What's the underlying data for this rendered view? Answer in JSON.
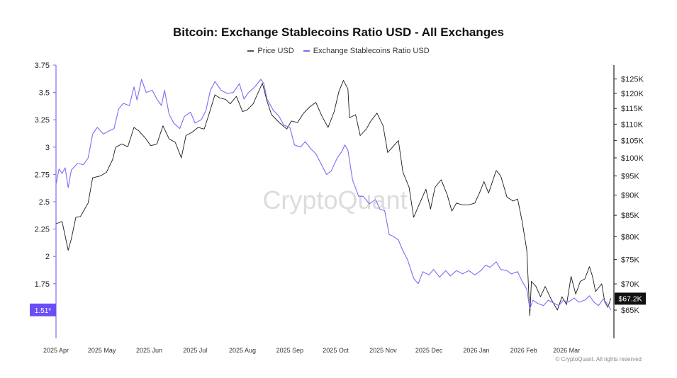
{
  "chart_data": {
    "type": "line",
    "title": "Bitcoin: Exchange Stablecoins Ratio USD - All Exchanges",
    "watermark": "CryptoQuant",
    "copyright": "© CryptoQuant. All rights reserved",
    "legend_position": "top-center",
    "grid": false,
    "x_ticks": [
      "2025 Apr",
      "2025 May",
      "2025 Jun",
      "2025 Jul",
      "2025 Aug",
      "2025 Sep",
      "2025 Oct",
      "2025 Nov",
      "2025 Dec",
      "2026 Jan",
      "2026 Feb",
      "2026 Mar"
    ],
    "x_range": [
      "2025-04-01",
      "2026-04-01"
    ],
    "left_axis": {
      "ticks": [
        "3.75",
        "3.5",
        "3.25",
        "3",
        "2.75",
        "2.5",
        "2.25",
        "2",
        "1.75"
      ],
      "range": [
        1.25,
        3.75
      ],
      "current_label": "1.51*",
      "current_value": 1.51
    },
    "right_axis": {
      "ticks": [
        "$125K",
        "$120K",
        "$115K",
        "$110K",
        "$105K",
        "$100K",
        "$95K",
        "$90K",
        "$85K",
        "$80K",
        "$75K",
        "$70K",
        "$65K"
      ],
      "scale": "log",
      "range": [
        60000,
        130000
      ],
      "current_label": "$67.2K",
      "current_value": 67200
    },
    "series": [
      {
        "name": "Price USD",
        "axis": "right",
        "color": "#1a1a1a",
        "points": [
          [
            "2025-04-01",
            83000
          ],
          [
            "2025-04-05",
            83500
          ],
          [
            "2025-04-09",
            77000
          ],
          [
            "2025-04-11",
            79500
          ],
          [
            "2025-04-14",
            84500
          ],
          [
            "2025-04-17",
            84700
          ],
          [
            "2025-04-22",
            88000
          ],
          [
            "2025-04-25",
            94500
          ],
          [
            "2025-04-30",
            95000
          ],
          [
            "2025-05-04",
            96000
          ],
          [
            "2025-05-08",
            99500
          ],
          [
            "2025-05-10",
            103000
          ],
          [
            "2025-05-14",
            104000
          ],
          [
            "2025-05-18",
            103200
          ],
          [
            "2025-05-22",
            109000
          ],
          [
            "2025-05-25",
            108000
          ],
          [
            "2025-05-29",
            106000
          ],
          [
            "2025-06-02",
            103500
          ],
          [
            "2025-06-06",
            104000
          ],
          [
            "2025-06-10",
            109500
          ],
          [
            "2025-06-14",
            105500
          ],
          [
            "2025-06-18",
            104500
          ],
          [
            "2025-06-22",
            100000
          ],
          [
            "2025-06-25",
            106500
          ],
          [
            "2025-06-29",
            107500
          ],
          [
            "2025-07-03",
            109000
          ],
          [
            "2025-07-07",
            108500
          ],
          [
            "2025-07-10",
            113000
          ],
          [
            "2025-07-14",
            119500
          ],
          [
            "2025-07-17",
            118500
          ],
          [
            "2025-07-21",
            118000
          ],
          [
            "2025-07-24",
            116500
          ],
          [
            "2025-07-28",
            119000
          ],
          [
            "2025-08-01",
            114000
          ],
          [
            "2025-08-04",
            114500
          ],
          [
            "2025-08-08",
            116500
          ],
          [
            "2025-08-11",
            120000
          ],
          [
            "2025-08-14",
            123500
          ],
          [
            "2025-08-17",
            117500
          ],
          [
            "2025-08-20",
            113000
          ],
          [
            "2025-08-25",
            110500
          ],
          [
            "2025-08-30",
            108500
          ],
          [
            "2025-09-02",
            111000
          ],
          [
            "2025-09-06",
            110500
          ],
          [
            "2025-09-10",
            113500
          ],
          [
            "2025-09-14",
            115500
          ],
          [
            "2025-09-18",
            117000
          ],
          [
            "2025-09-22",
            112500
          ],
          [
            "2025-09-26",
            109000
          ],
          [
            "2025-09-30",
            114000
          ],
          [
            "2025-10-03",
            120500
          ],
          [
            "2025-10-06",
            124500
          ],
          [
            "2025-10-09",
            121500
          ],
          [
            "2025-10-10",
            112000
          ],
          [
            "2025-10-14",
            113000
          ],
          [
            "2025-10-17",
            106500
          ],
          [
            "2025-10-21",
            108500
          ],
          [
            "2025-10-24",
            111000
          ],
          [
            "2025-10-28",
            113500
          ],
          [
            "2025-11-01",
            109500
          ],
          [
            "2025-11-04",
            101500
          ],
          [
            "2025-11-07",
            103000
          ],
          [
            "2025-11-11",
            105000
          ],
          [
            "2025-11-14",
            96000
          ],
          [
            "2025-11-18",
            92000
          ],
          [
            "2025-11-21",
            84500
          ],
          [
            "2025-11-25",
            88000
          ],
          [
            "2025-11-29",
            91500
          ],
          [
            "2025-12-02",
            86500
          ],
          [
            "2025-12-05",
            92000
          ],
          [
            "2025-12-09",
            94000
          ],
          [
            "2025-12-13",
            90000
          ],
          [
            "2025-12-16",
            86000
          ],
          [
            "2025-12-19",
            88000
          ],
          [
            "2025-12-23",
            87500
          ],
          [
            "2025-12-27",
            87500
          ],
          [
            "2025-12-31",
            88000
          ],
          [
            "2026-01-03",
            90500
          ],
          [
            "2026-01-06",
            93500
          ],
          [
            "2026-01-09",
            90500
          ],
          [
            "2026-01-14",
            96500
          ],
          [
            "2026-01-17",
            95000
          ],
          [
            "2026-01-21",
            89500
          ],
          [
            "2026-01-25",
            88500
          ],
          [
            "2026-01-28",
            89000
          ],
          [
            "2026-01-31",
            83500
          ],
          [
            "2026-02-03",
            77000
          ],
          [
            "2026-02-05",
            64000
          ],
          [
            "2026-02-06",
            70500
          ],
          [
            "2026-02-09",
            69500
          ],
          [
            "2026-02-12",
            67500
          ],
          [
            "2026-02-15",
            69500
          ],
          [
            "2026-02-19",
            67000
          ],
          [
            "2026-02-23",
            65000
          ],
          [
            "2026-02-26",
            67500
          ],
          [
            "2026-03-01",
            66000
          ],
          [
            "2026-03-04",
            71500
          ],
          [
            "2026-03-07",
            68000
          ],
          [
            "2026-03-10",
            70500
          ],
          [
            "2026-03-13",
            71000
          ],
          [
            "2026-03-16",
            73500
          ],
          [
            "2026-03-18",
            71500
          ],
          [
            "2026-03-20",
            68500
          ],
          [
            "2026-03-24",
            70000
          ],
          [
            "2026-03-26",
            66500
          ],
          [
            "2026-03-28",
            65500
          ],
          [
            "2026-03-30",
            67200
          ]
        ]
      },
      {
        "name": "Exchange Stablecoins Ratio USD",
        "axis": "left",
        "color": "#7b6cf6",
        "points": [
          [
            "2025-04-01",
            2.66
          ],
          [
            "2025-04-03",
            2.8
          ],
          [
            "2025-04-05",
            2.76
          ],
          [
            "2025-04-07",
            2.81
          ],
          [
            "2025-04-09",
            2.63
          ],
          [
            "2025-04-11",
            2.79
          ],
          [
            "2025-04-15",
            2.85
          ],
          [
            "2025-04-19",
            2.84
          ],
          [
            "2025-04-22",
            2.9
          ],
          [
            "2025-04-25",
            3.12
          ],
          [
            "2025-04-28",
            3.18
          ],
          [
            "2025-05-02",
            3.12
          ],
          [
            "2025-05-06",
            3.15
          ],
          [
            "2025-05-09",
            3.17
          ],
          [
            "2025-05-12",
            3.35
          ],
          [
            "2025-05-15",
            3.4
          ],
          [
            "2025-05-19",
            3.38
          ],
          [
            "2025-05-22",
            3.55
          ],
          [
            "2025-05-24",
            3.43
          ],
          [
            "2025-05-27",
            3.62
          ],
          [
            "2025-05-30",
            3.5
          ],
          [
            "2025-06-03",
            3.52
          ],
          [
            "2025-06-06",
            3.44
          ],
          [
            "2025-06-09",
            3.38
          ],
          [
            "2025-06-11",
            3.52
          ],
          [
            "2025-06-14",
            3.3
          ],
          [
            "2025-06-17",
            3.22
          ],
          [
            "2025-06-21",
            3.17
          ],
          [
            "2025-06-24",
            3.28
          ],
          [
            "2025-06-28",
            3.32
          ],
          [
            "2025-07-01",
            3.22
          ],
          [
            "2025-07-05",
            3.25
          ],
          [
            "2025-07-08",
            3.33
          ],
          [
            "2025-07-11",
            3.52
          ],
          [
            "2025-07-14",
            3.6
          ],
          [
            "2025-07-18",
            3.52
          ],
          [
            "2025-07-22",
            3.49
          ],
          [
            "2025-07-26",
            3.5
          ],
          [
            "2025-07-30",
            3.58
          ],
          [
            "2025-08-02",
            3.44
          ],
          [
            "2025-08-05",
            3.5
          ],
          [
            "2025-08-09",
            3.55
          ],
          [
            "2025-08-13",
            3.62
          ],
          [
            "2025-08-15",
            3.58
          ],
          [
            "2025-08-17",
            3.44
          ],
          [
            "2025-08-21",
            3.34
          ],
          [
            "2025-08-25",
            3.28
          ],
          [
            "2025-08-28",
            3.2
          ],
          [
            "2025-09-01",
            3.18
          ],
          [
            "2025-09-04",
            3.02
          ],
          [
            "2025-09-08",
            3.0
          ],
          [
            "2025-09-11",
            3.05
          ],
          [
            "2025-09-15",
            2.98
          ],
          [
            "2025-09-18",
            2.94
          ],
          [
            "2025-09-22",
            2.83
          ],
          [
            "2025-09-25",
            2.75
          ],
          [
            "2025-09-28",
            2.78
          ],
          [
            "2025-10-02",
            2.9
          ],
          [
            "2025-10-05",
            2.96
          ],
          [
            "2025-10-07",
            3.02
          ],
          [
            "2025-10-09",
            2.97
          ],
          [
            "2025-10-12",
            2.7
          ],
          [
            "2025-10-16",
            2.55
          ],
          [
            "2025-10-19",
            2.55
          ],
          [
            "2025-10-23",
            2.48
          ],
          [
            "2025-10-27",
            2.52
          ],
          [
            "2025-10-30",
            2.43
          ],
          [
            "2025-11-02",
            2.42
          ],
          [
            "2025-11-05",
            2.2
          ],
          [
            "2025-11-08",
            2.18
          ],
          [
            "2025-11-11",
            2.15
          ],
          [
            "2025-11-14",
            2.05
          ],
          [
            "2025-11-17",
            1.97
          ],
          [
            "2025-11-21",
            1.8
          ],
          [
            "2025-11-24",
            1.75
          ],
          [
            "2025-11-27",
            1.86
          ],
          [
            "2025-12-01",
            1.83
          ],
          [
            "2025-12-04",
            1.88
          ],
          [
            "2025-12-08",
            1.81
          ],
          [
            "2025-12-12",
            1.87
          ],
          [
            "2025-12-15",
            1.82
          ],
          [
            "2025-12-19",
            1.87
          ],
          [
            "2025-12-23",
            1.84
          ],
          [
            "2025-12-27",
            1.87
          ],
          [
            "2025-12-31",
            1.83
          ],
          [
            "2026-01-04",
            1.87
          ],
          [
            "2026-01-07",
            1.92
          ],
          [
            "2026-01-10",
            1.9
          ],
          [
            "2026-01-14",
            1.95
          ],
          [
            "2026-01-17",
            1.88
          ],
          [
            "2026-01-21",
            1.87
          ],
          [
            "2026-01-24",
            1.84
          ],
          [
            "2026-01-28",
            1.86
          ],
          [
            "2026-01-31",
            1.77
          ],
          [
            "2026-02-03",
            1.7
          ],
          [
            "2026-02-05",
            1.52
          ],
          [
            "2026-02-07",
            1.6
          ],
          [
            "2026-02-10",
            1.57
          ],
          [
            "2026-02-14",
            1.55
          ],
          [
            "2026-02-17",
            1.6
          ],
          [
            "2026-02-21",
            1.57
          ],
          [
            "2026-02-24",
            1.55
          ],
          [
            "2026-02-27",
            1.6
          ],
          [
            "2026-03-02",
            1.58
          ],
          [
            "2026-03-06",
            1.62
          ],
          [
            "2026-03-09",
            1.58
          ],
          [
            "2026-03-13",
            1.6
          ],
          [
            "2026-03-16",
            1.64
          ],
          [
            "2026-03-19",
            1.58
          ],
          [
            "2026-03-22",
            1.55
          ],
          [
            "2026-03-25",
            1.61
          ],
          [
            "2026-03-28",
            1.56
          ],
          [
            "2026-03-30",
            1.51
          ]
        ]
      }
    ]
  }
}
